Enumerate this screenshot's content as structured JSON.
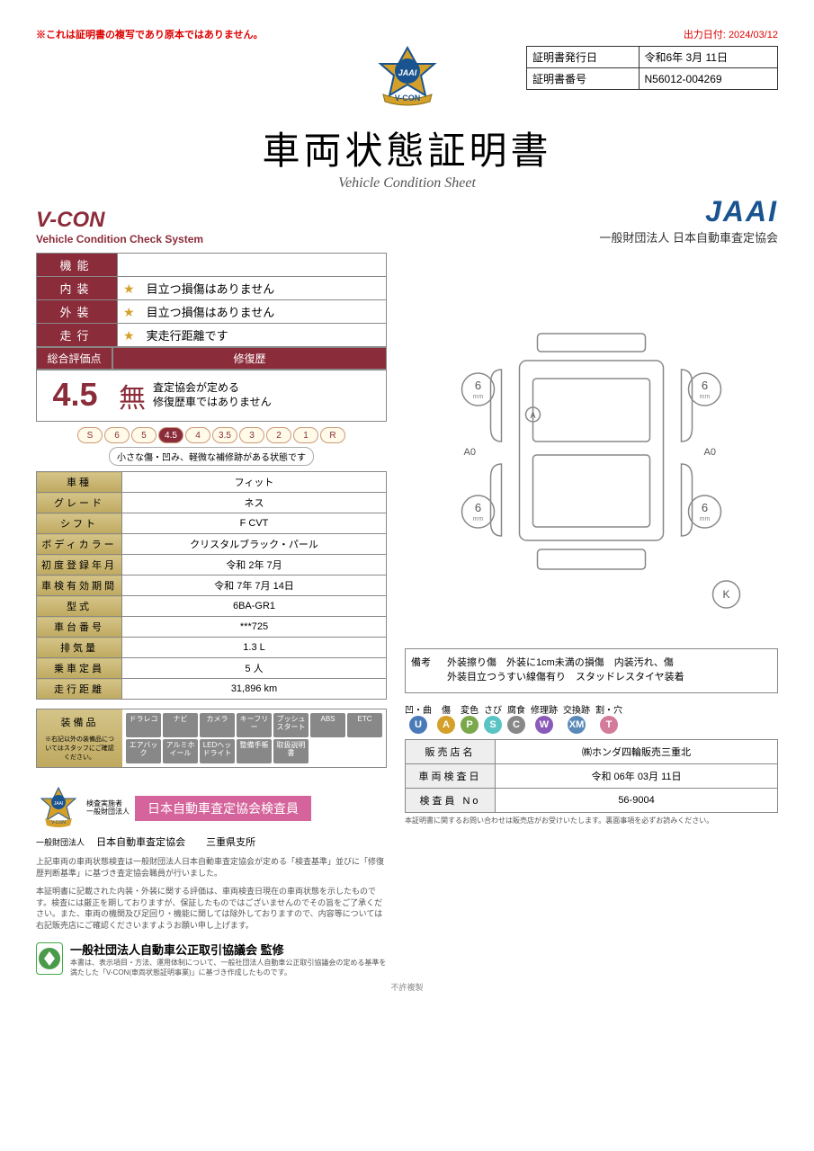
{
  "header": {
    "copy_note": "※これは証明書の複写であり原本ではありません。",
    "output_date_label": "出力日付:",
    "output_date": "2024/03/12",
    "cert_issue_label": "証明書発行日",
    "cert_issue_date": "令和6年 3月 11日",
    "cert_no_label": "証明書番号",
    "cert_no": "N56012-004269"
  },
  "titles": {
    "main": "車両状態証明書",
    "sub": "Vehicle Condition Sheet",
    "vcon": "V-CON",
    "vcon_sub": "Vehicle Condition Check System",
    "jaai": "JAAI",
    "jaai_sub": "一般財団法人 日本自動車査定協会"
  },
  "ratings": {
    "kinou_lbl": "機能",
    "kinou_val": "",
    "naiso_lbl": "内装",
    "naiso_val": "目立つ損傷はありません",
    "gaiso_lbl": "外装",
    "gaiso_val": "目立つ損傷はありません",
    "soukou_lbl": "走行",
    "soukou_val": "実走行距離です",
    "sogo_lbl": "総合評価点",
    "repair_lbl": "修復歴",
    "score": "4.5",
    "mu": "無",
    "repair_txt1": "査定協会が定める",
    "repair_txt2": "修復歴車ではありません",
    "scale_desc": "小さな傷・凹み、軽微な補修跡がある状態です"
  },
  "scale": {
    "values": [
      "S",
      "6",
      "5",
      "4.5",
      "4",
      "3.5",
      "3",
      "2",
      "1",
      "R"
    ],
    "selected": "4.5"
  },
  "details": [
    {
      "lbl": "車種",
      "val": "フィット"
    },
    {
      "lbl": "グレード",
      "val": "ネス"
    },
    {
      "lbl": "シフト",
      "val": "F CVT"
    },
    {
      "lbl": "ボディカラー",
      "val": "クリスタルブラック・パール"
    },
    {
      "lbl": "初度登録年月",
      "val": "令和 2年 7月"
    },
    {
      "lbl": "車検有効期間",
      "val": "令和 7年 7月 14日"
    },
    {
      "lbl": "型式",
      "val": "6BA-GR1"
    },
    {
      "lbl": "車台番号",
      "val": "***725"
    },
    {
      "lbl": "排気量",
      "val": "1.3 L"
    },
    {
      "lbl": "乗車定員",
      "val": "5 人"
    },
    {
      "lbl": "走行距離",
      "val": "31,896 km"
    }
  ],
  "equip": {
    "lbl": "装備品",
    "note": "※右記以外の装備品についてはスタッフにご確認ください。",
    "items": [
      "ドラレコ",
      "ナビ",
      "カメラ",
      "キーフリー",
      "プッシュスタート",
      "ABS",
      "ETC",
      "エアバック",
      "アルミホイール",
      "LEDヘッドライト",
      "整備手帳",
      "取扱説明書"
    ]
  },
  "diagram": {
    "front_l": "6",
    "front_r": "6",
    "rear_l": "6",
    "rear_r": "6",
    "unit": "mm",
    "left_mark": "A0",
    "right_mark": "A0",
    "a_mark": "A",
    "k_mark": "K"
  },
  "remarks": {
    "lbl": "備考",
    "line1": "外装擦り傷　外装に1cm未満の損傷　内装汚れ、傷",
    "line2": "外装目立つうすい線傷有り　スタッドレスタイヤ装着"
  },
  "inspector": {
    "small1": "検査実施者",
    "small2": "一般財団法人",
    "ribbon": "日本自動車査定協会検査員",
    "sub_org": "一般財団法人",
    "sub_name": "日本自動車査定協会",
    "sub_branch": "三重県支所"
  },
  "fineprint": {
    "p1": "上記車両の車両状態検査は一般財団法人日本自動車査定協会が定める「検査基準」並びに「修復歴判断基準」に基づき査定協会職員が行いました。",
    "p2": "本証明書に記載された内装・外装に関する評価は、車両検査日現在の車両状態を示したものです。検査には厳正を期しておりますが、保証したものではございませんのでその旨をご了承ください。また、車両の機関及び足回り・機能に関しては除外しておりますので、内容等については右記販売店にご確認くださいますようお願い申し上げます。"
  },
  "legend": [
    {
      "lbl": "凹・曲",
      "sym": "U",
      "color": "#4a7ab8"
    },
    {
      "lbl": "傷",
      "sym": "A",
      "color": "#d4a02a"
    },
    {
      "lbl": "変色",
      "sym": "P",
      "color": "#7aa84a"
    },
    {
      "lbl": "さび",
      "sym": "S",
      "color": "#5ac4c4"
    },
    {
      "lbl": "腐食",
      "sym": "C",
      "color": "#888"
    },
    {
      "lbl": "修理跡",
      "sym": "W",
      "color": "#8a5ab8"
    },
    {
      "lbl": "交換跡",
      "sym": "XM",
      "color": "#5a8ab8"
    },
    {
      "lbl": "割・穴",
      "sym": "T",
      "color": "#d47a9b"
    }
  ],
  "dealer": {
    "name_lbl": "販売店名",
    "name_val": "㈱ホンダ四輪販売三重北",
    "date_lbl": "車両検査日",
    "date_val": "令和 06年 03月 11日",
    "insp_lbl": "検査員 No",
    "insp_val": "56-9004",
    "note": "本証明書に関するお問い合わせは販売店がお受けいたします。裏面事項を必ずお読みください。"
  },
  "supervise": {
    "txt": "一般社団法人自動車公正取引協議会 監修",
    "fine": "本書は、表示項目・方法、運用体制について、一般社団法人自動車公正取引協議会の定める基準を満たした「V-CON(車両状態証明事業)」に基づき作成したものです。",
    "watermark": "不許複製"
  }
}
